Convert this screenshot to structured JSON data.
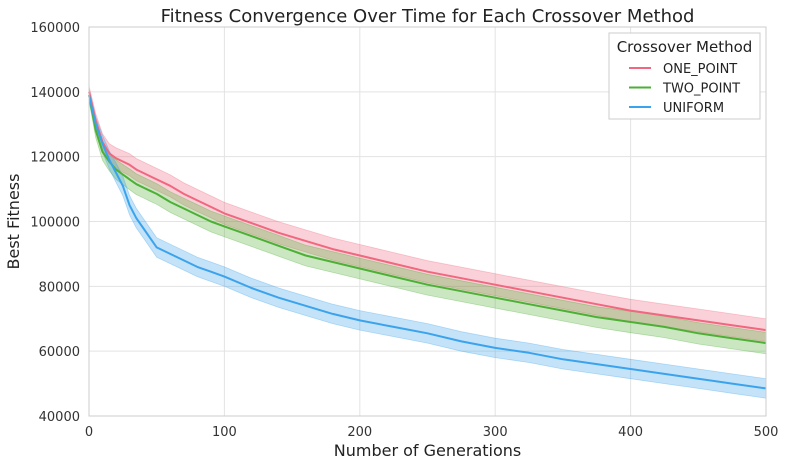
{
  "chart_data": {
    "type": "line",
    "title": "Fitness Convergence Over Time for Each Crossover Method",
    "xlabel": "Number of Generations",
    "ylabel": "Best Fitness",
    "xlim": [
      0,
      500
    ],
    "ylim": [
      40000,
      160000
    ],
    "xticks": [
      0,
      100,
      200,
      300,
      400,
      500
    ],
    "yticks": [
      40000,
      60000,
      80000,
      100000,
      120000,
      140000,
      160000
    ],
    "grid": true,
    "legend": {
      "title": "Crossover Method",
      "placement": "top-right"
    },
    "x": [
      0,
      5,
      10,
      15,
      20,
      25,
      30,
      35,
      40,
      45,
      50,
      60,
      70,
      80,
      90,
      100,
      120,
      140,
      160,
      180,
      200,
      225,
      250,
      275,
      300,
      325,
      350,
      375,
      400,
      425,
      450,
      475,
      500
    ],
    "series": [
      {
        "name": "ONE_POINT",
        "color": "#f0677f",
        "values": [
          140000,
          131000,
          124500,
          121000,
          119500,
          118500,
          117500,
          116000,
          115000,
          114000,
          113000,
          111000,
          108500,
          106500,
          104500,
          102500,
          99500,
          96500,
          94000,
          91500,
          89500,
          87000,
          84500,
          82500,
          80500,
          78500,
          76500,
          74500,
          72500,
          71000,
          69500,
          68000,
          66500
        ],
        "band": [
          1800,
          2200,
          2600,
          3000,
          3200,
          3300,
          3400,
          3400,
          3400,
          3400,
          3400,
          3400,
          3400,
          3400,
          3400,
          3400,
          3400,
          3400,
          3400,
          3400,
          3400,
          3400,
          3400,
          3400,
          3400,
          3400,
          3400,
          3400,
          3500,
          3500,
          3500,
          3500,
          3500
        ]
      },
      {
        "name": "TWO_POINT",
        "color": "#4eaf36",
        "values": [
          139000,
          128000,
          121500,
          118500,
          116000,
          114500,
          113000,
          111500,
          110500,
          109500,
          108500,
          106000,
          104000,
          102000,
          100000,
          98500,
          95500,
          92500,
          89500,
          87500,
          85500,
          83000,
          80500,
          78500,
          76500,
          74500,
          72500,
          70500,
          69000,
          67500,
          65500,
          64000,
          62500
        ],
        "band": [
          1800,
          2200,
          2600,
          2900,
          3000,
          3100,
          3200,
          3200,
          3200,
          3200,
          3200,
          3200,
          3200,
          3200,
          3200,
          3200,
          3200,
          3200,
          3200,
          3200,
          3200,
          3200,
          3200,
          3200,
          3200,
          3200,
          3200,
          3200,
          3300,
          3300,
          3300,
          3300,
          3300
        ]
      },
      {
        "name": "UNIFORM",
        "color": "#3ba3ec",
        "values": [
          139000,
          130000,
          124000,
          119000,
          115000,
          111000,
          105000,
          101000,
          98000,
          95000,
          92000,
          90000,
          88000,
          86000,
          84500,
          83000,
          79500,
          76500,
          74000,
          71500,
          69500,
          67500,
          65500,
          63000,
          61000,
          59500,
          57500,
          56000,
          54500,
          53000,
          51500,
          50000,
          48500
        ],
        "band": [
          1800,
          2200,
          2600,
          2800,
          3000,
          3000,
          3000,
          3000,
          3000,
          3000,
          3000,
          3000,
          3000,
          3000,
          3000,
          3000,
          3000,
          3000,
          3000,
          3000,
          3000,
          3000,
          3000,
          3000,
          3000,
          3000,
          3000,
          3000,
          3000,
          3000,
          3000,
          3000,
          3000
        ]
      }
    ]
  }
}
